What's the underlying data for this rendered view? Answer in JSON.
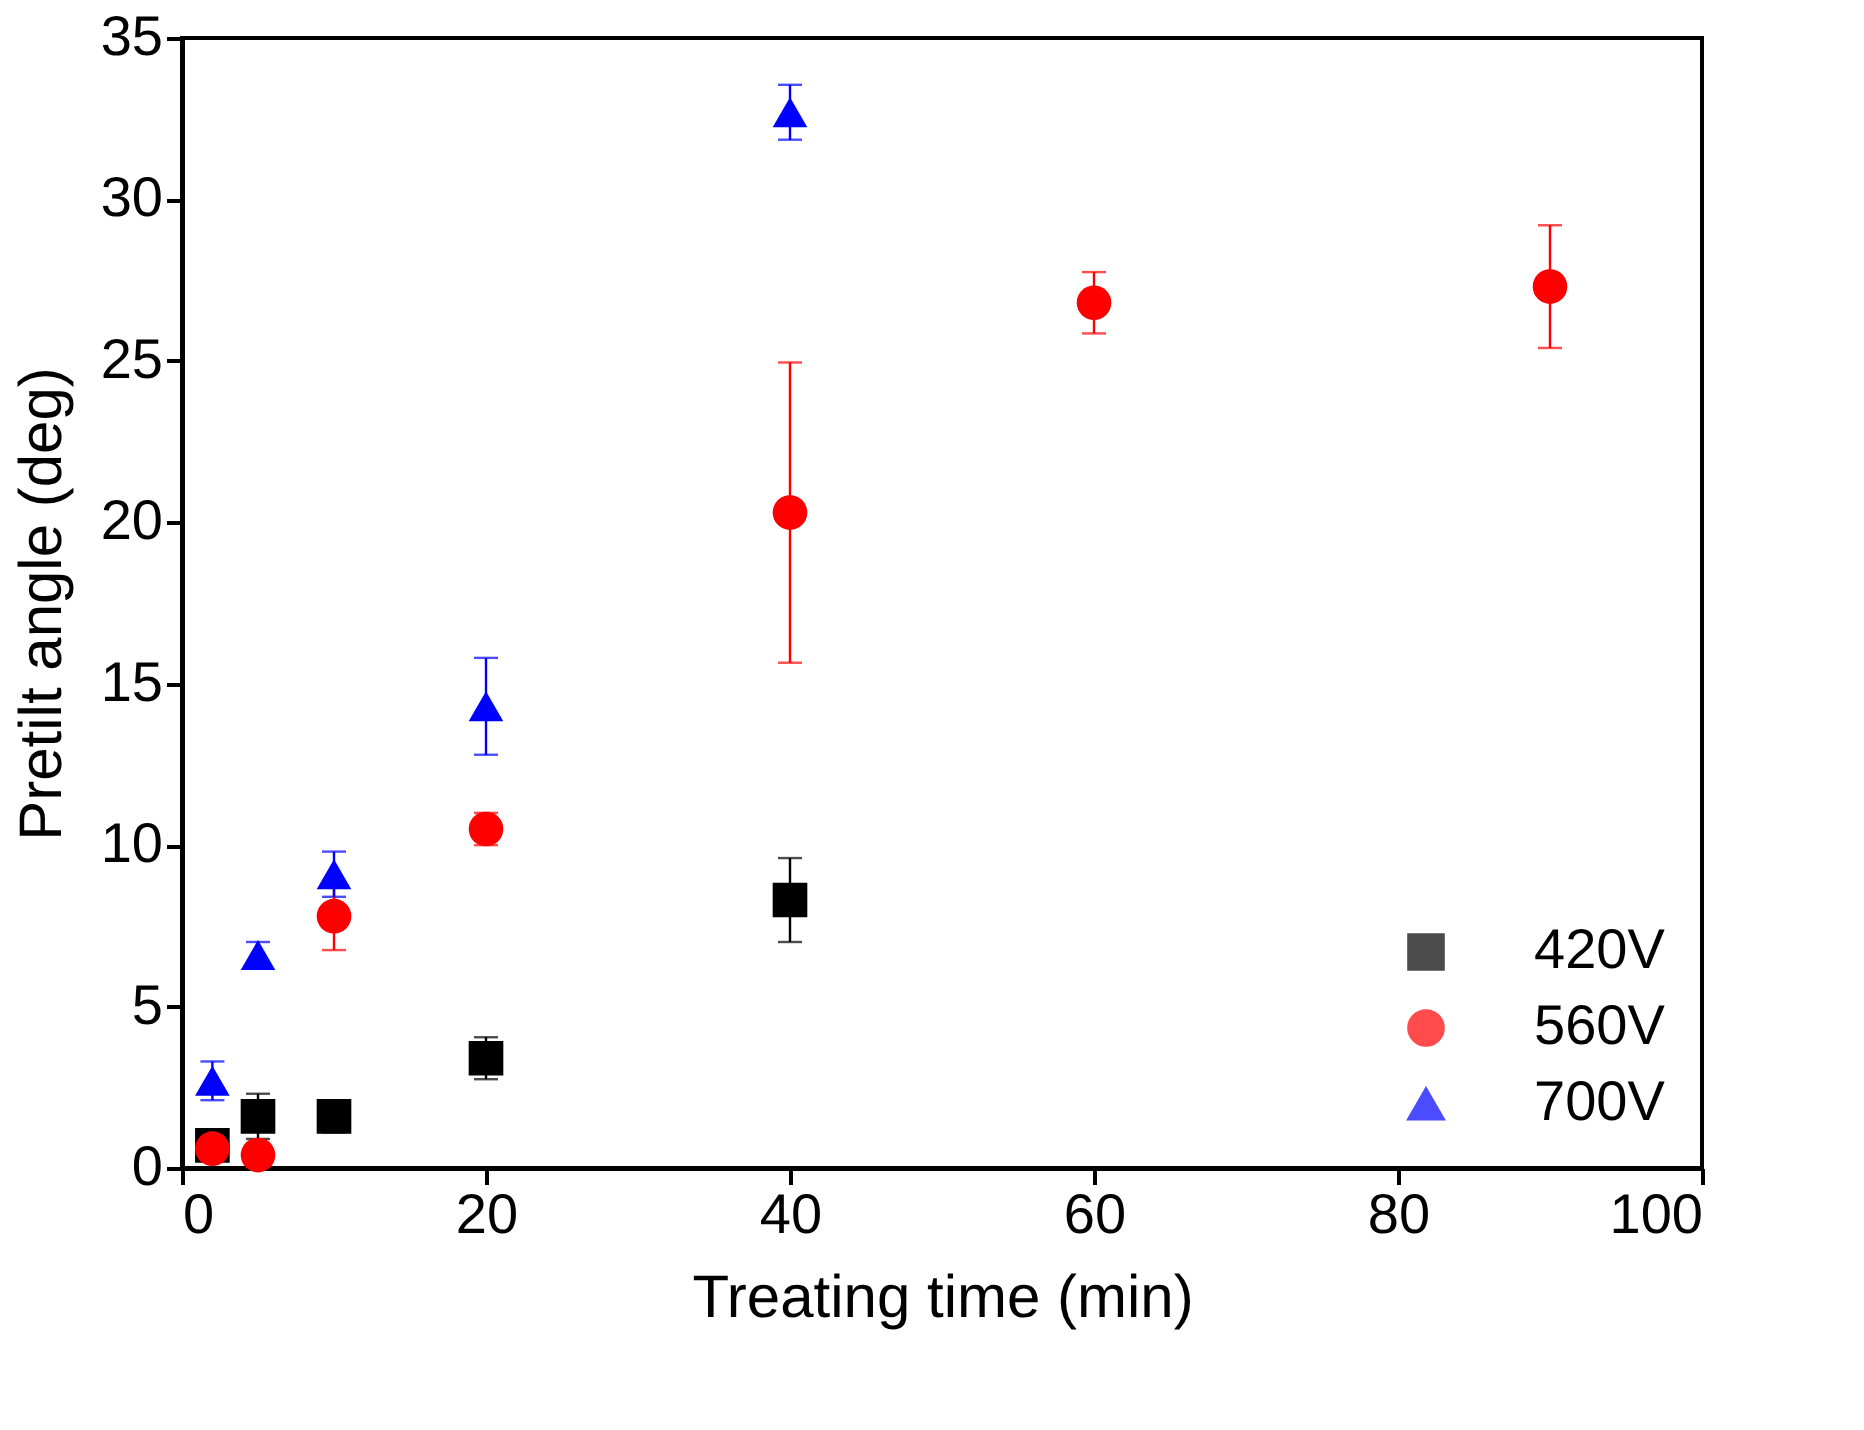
{
  "chart_data": {
    "type": "scatter",
    "xlabel": "Treating time (min)",
    "ylabel": "Pretilt angle (deg)",
    "xlim": [
      0,
      100
    ],
    "xticks": [
      0,
      20,
      40,
      60,
      80,
      100
    ],
    "ylim": [
      0,
      35
    ],
    "yticks": [
      0,
      5,
      10,
      15,
      20,
      25,
      30,
      35
    ],
    "grid": false,
    "legend": "bottom right",
    "series": [
      {
        "name": "420V",
        "color": "#000000",
        "marker": "square",
        "x": [
          2,
          5,
          10,
          20,
          40
        ],
        "values": [
          0.7,
          1.6,
          1.6,
          3.4,
          8.3
        ],
        "errors": [
          null,
          0.7,
          0.5,
          0.65,
          1.3
        ]
      },
      {
        "name": "560V",
        "color": "#ff0000",
        "marker": "circle",
        "x": [
          2,
          5,
          10,
          20,
          40,
          60,
          90
        ],
        "values": [
          0.6,
          0.4,
          7.8,
          10.5,
          20.3,
          26.8,
          27.3
        ],
        "errors": [
          0.2,
          0.1,
          1.05,
          0.5,
          4.65,
          0.95,
          1.9
        ]
      },
      {
        "name": "700V",
        "color": "#0000ff",
        "marker": "triangle",
        "x": [
          2,
          5,
          10,
          20,
          40
        ],
        "values": [
          2.7,
          6.6,
          9.1,
          14.3,
          32.7
        ],
        "errors": [
          0.6,
          0.4,
          0.7,
          1.5,
          0.85
        ]
      }
    ]
  }
}
